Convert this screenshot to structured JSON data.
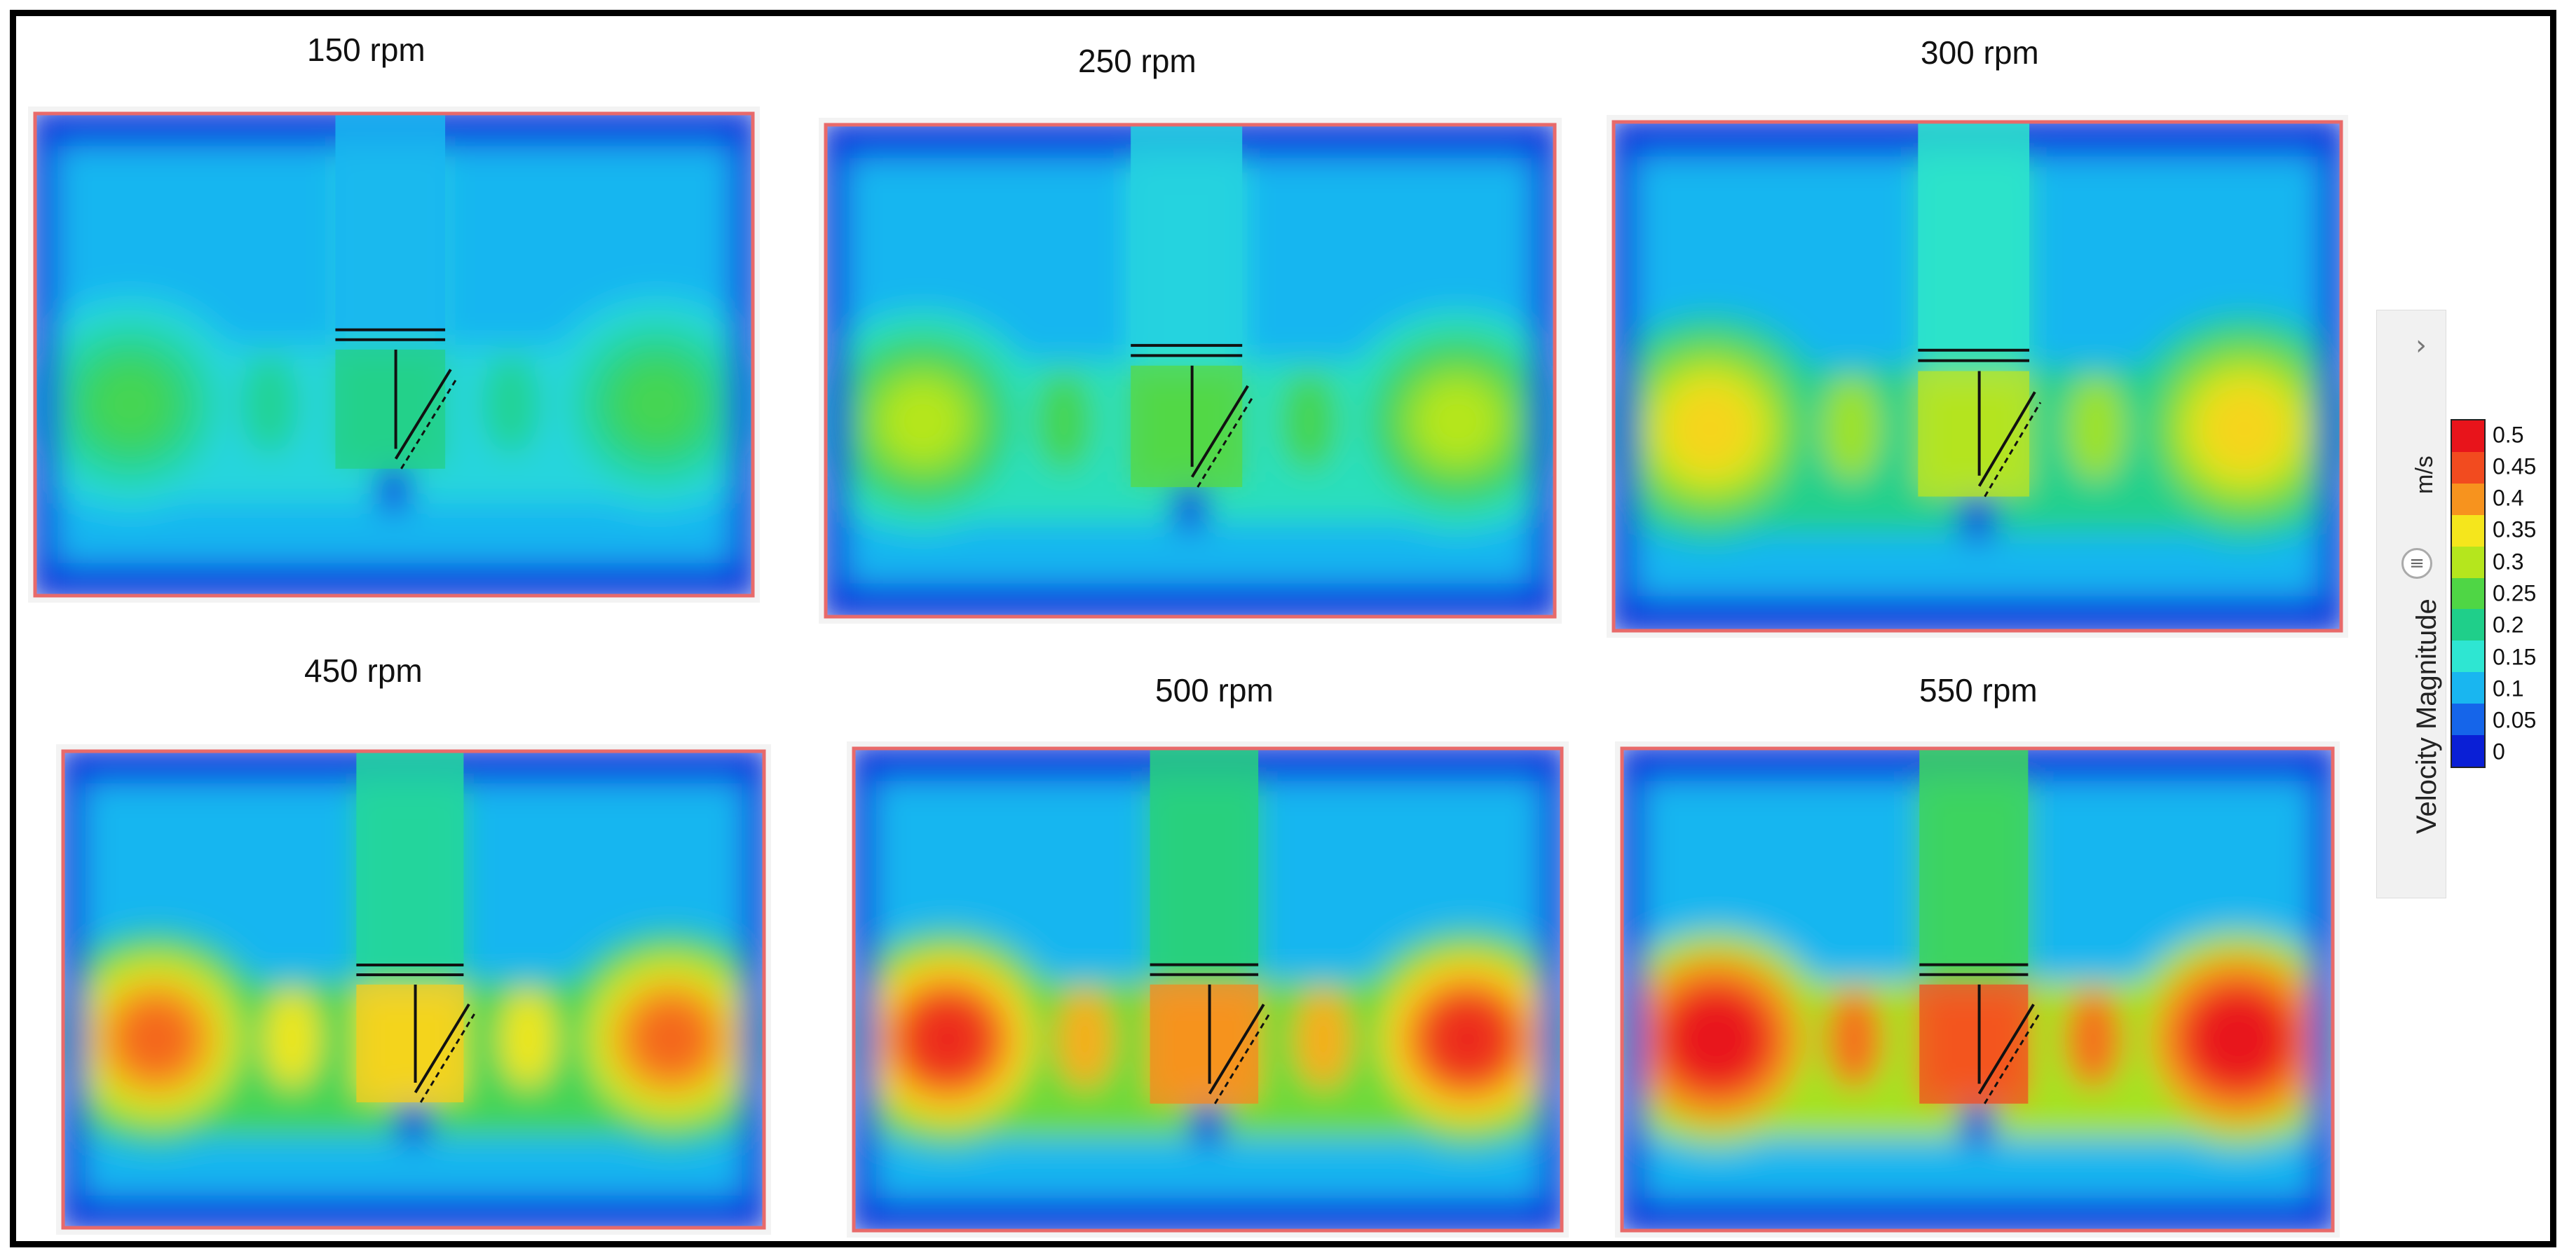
{
  "panels": [
    {
      "label": "150 rpm",
      "level": 0.24
    },
    {
      "label": "250 rpm",
      "level": 0.3
    },
    {
      "label": "300 rpm",
      "level": 0.36
    },
    {
      "label": "450 rpm",
      "level": 0.43
    },
    {
      "label": "500 rpm",
      "level": 0.48
    },
    {
      "label": "550 rpm",
      "level": 0.53
    }
  ],
  "legend": {
    "title": "Velocity Magnitude",
    "unit": "m/s",
    "ticks": [
      "0.5",
      "0.45",
      "0.4",
      "0.35",
      "0.3",
      "0.25",
      "0.2",
      "0.15",
      "0.1",
      "0.05",
      "0"
    ],
    "colors": [
      "#e8141b",
      "#f24b1f",
      "#f7931e",
      "#f5e61c",
      "#b5e61d",
      "#4fd645",
      "#1fcf8a",
      "#2ee6d2",
      "#19b6f0",
      "#1565ea",
      "#0a1fd6"
    ]
  }
}
